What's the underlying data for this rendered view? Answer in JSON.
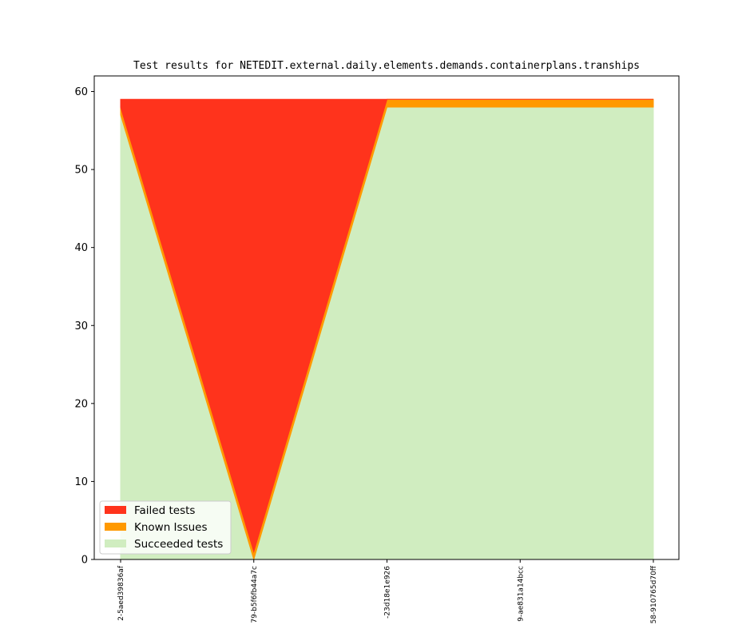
{
  "chart_data": {
    "type": "area",
    "title": "Test results for NETEDIT.external.daily.elements.demands.containerplans.tranships",
    "xlabel": "",
    "ylabel": "",
    "categories": [
      "2-5aed39836af",
      "79-b5f6fb44a7c",
      "-23d18e1e926",
      "9-ae831a14bcc",
      "58-910765d70ff"
    ],
    "ylim": [
      0,
      62
    ],
    "yticks": [
      0,
      10,
      20,
      30,
      40,
      50,
      60
    ],
    "stacked": true,
    "series": [
      {
        "name": "Succeeded tests",
        "color": "#d0edc0",
        "values": [
          57,
          0,
          58,
          58,
          58
        ]
      },
      {
        "name": "Known Issues",
        "color": "#ff9900",
        "values": [
          1,
          1,
          1,
          1,
          1
        ]
      },
      {
        "name": "Failed tests",
        "color": "#ff331c",
        "values": [
          1,
          58,
          0,
          0,
          0
        ]
      }
    ],
    "legend": {
      "position": "lower-left",
      "entries": [
        "Failed tests",
        "Known Issues",
        "Succeeded tests"
      ]
    },
    "grid": false
  }
}
